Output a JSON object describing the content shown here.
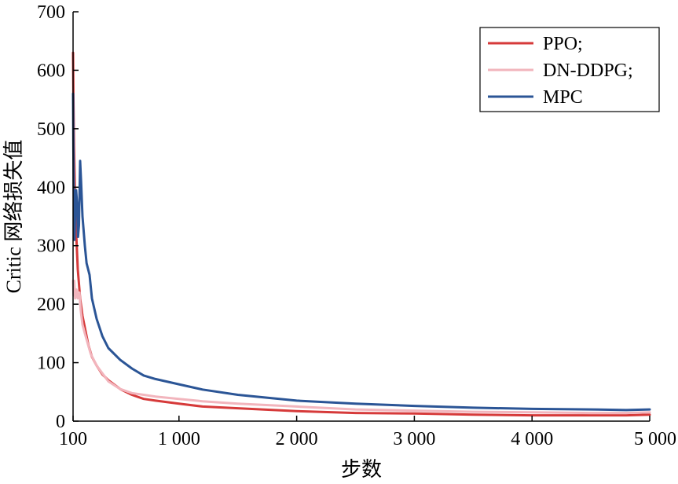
{
  "chart_data": {
    "type": "line",
    "title": "",
    "xlabel": "步数",
    "ylabel": "Critic 网络损失值",
    "xlim": [
      100,
      5000
    ],
    "ylim": [
      0,
      700
    ],
    "x_ticks": [
      100,
      1000,
      2000,
      3000,
      4000,
      5000
    ],
    "x_tick_labels": [
      "100",
      "1 000",
      "2 000",
      "3 000",
      "4 000",
      "5 000"
    ],
    "y_ticks": [
      0,
      100,
      200,
      300,
      400,
      500,
      600,
      700
    ],
    "y_tick_labels": [
      "0",
      "100",
      "200",
      "300",
      "400",
      "500",
      "600",
      "700"
    ],
    "grid": false,
    "legend": {
      "position": "top-right",
      "entries": [
        "PPO;",
        "DN-DDPG;",
        "MPC"
      ]
    },
    "series": [
      {
        "name": "PPO;",
        "color": "#d63a3a",
        "points": [
          [
            100,
            630
          ],
          [
            103,
            560
          ],
          [
            108,
            470
          ],
          [
            115,
            400
          ],
          [
            125,
            330
          ],
          [
            140,
            260
          ],
          [
            160,
            210
          ],
          [
            180,
            180
          ],
          [
            200,
            160
          ],
          [
            230,
            130
          ],
          [
            260,
            110
          ],
          [
            300,
            95
          ],
          [
            350,
            80
          ],
          [
            400,
            70
          ],
          [
            500,
            55
          ],
          [
            600,
            45
          ],
          [
            700,
            38
          ],
          [
            800,
            35
          ],
          [
            1000,
            30
          ],
          [
            1200,
            25
          ],
          [
            1500,
            22
          ],
          [
            2000,
            17
          ],
          [
            2500,
            14
          ],
          [
            3000,
            13
          ],
          [
            3500,
            11
          ],
          [
            4000,
            10
          ],
          [
            4500,
            10
          ],
          [
            4800,
            10
          ],
          [
            5000,
            11
          ]
        ]
      },
      {
        "name": "DN-DDPG;",
        "color": "#f2b5bd",
        "points": [
          [
            100,
            240
          ],
          [
            105,
            215
          ],
          [
            110,
            240
          ],
          [
            118,
            210
          ],
          [
            128,
            225
          ],
          [
            140,
            210
          ],
          [
            155,
            220
          ],
          [
            165,
            190
          ],
          [
            180,
            165
          ],
          [
            200,
            150
          ],
          [
            250,
            115
          ],
          [
            300,
            95
          ],
          [
            400,
            68
          ],
          [
            500,
            55
          ],
          [
            600,
            48
          ],
          [
            700,
            45
          ],
          [
            800,
            42
          ],
          [
            1000,
            38
          ],
          [
            1200,
            34
          ],
          [
            1500,
            30
          ],
          [
            2000,
            25
          ],
          [
            2500,
            20
          ],
          [
            3000,
            18
          ],
          [
            3500,
            16
          ],
          [
            4000,
            15
          ],
          [
            4500,
            14
          ],
          [
            4800,
            14
          ],
          [
            5000,
            15
          ]
        ]
      },
      {
        "name": "MPC",
        "color": "#2b5596",
        "points": [
          [
            100,
            560
          ],
          [
            103,
            470
          ],
          [
            107,
            380
          ],
          [
            112,
            310
          ],
          [
            118,
            360
          ],
          [
            126,
            395
          ],
          [
            135,
            370
          ],
          [
            142,
            315
          ],
          [
            150,
            335
          ],
          [
            160,
            445
          ],
          [
            168,
            410
          ],
          [
            180,
            350
          ],
          [
            200,
            300
          ],
          [
            215,
            270
          ],
          [
            240,
            250
          ],
          [
            260,
            210
          ],
          [
            300,
            175
          ],
          [
            350,
            145
          ],
          [
            400,
            125
          ],
          [
            500,
            105
          ],
          [
            600,
            90
          ],
          [
            700,
            78
          ],
          [
            800,
            72
          ],
          [
            1000,
            63
          ],
          [
            1200,
            54
          ],
          [
            1500,
            45
          ],
          [
            2000,
            35
          ],
          [
            2500,
            30
          ],
          [
            3000,
            26
          ],
          [
            3500,
            23
          ],
          [
            4000,
            21
          ],
          [
            4500,
            20
          ],
          [
            4800,
            19
          ],
          [
            5000,
            20
          ]
        ]
      }
    ]
  }
}
